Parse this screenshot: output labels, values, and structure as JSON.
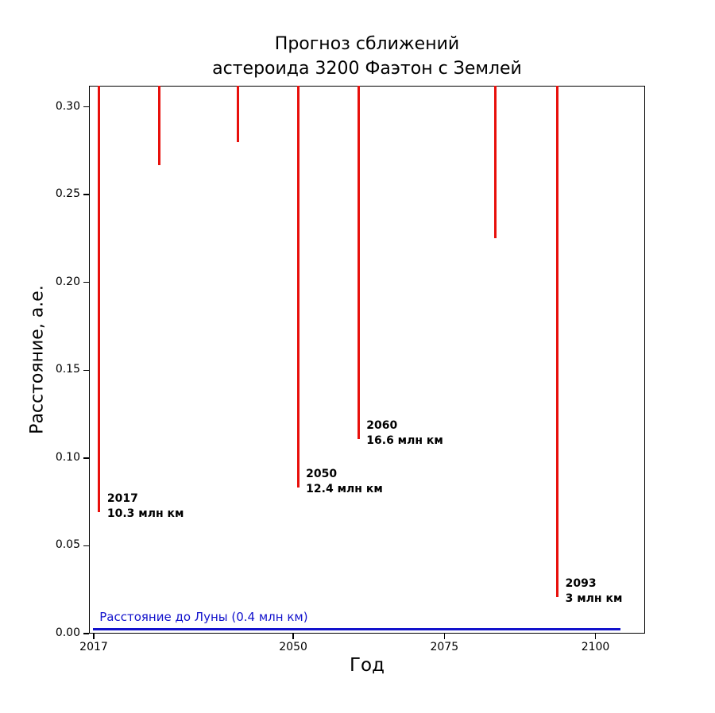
{
  "chart_data": {
    "type": "stem",
    "stem_direction": "hanging-from-top",
    "title": "Прогноз сближений\nастероида 3200 Фаэтон с Землей",
    "xlabel": "Год",
    "ylabel": "Расстояние, а.е.",
    "xlim": [
      2016.21,
      2108.21
    ],
    "ylim": [
      0,
      0.312
    ],
    "grid": false,
    "xticks": [
      {
        "value": 2017,
        "label": "2017"
      },
      {
        "value": 2050,
        "label": "2050"
      },
      {
        "value": 2075,
        "label": "2075"
      },
      {
        "value": 2100,
        "label": "2100"
      }
    ],
    "yticks": [
      {
        "value": 0.0,
        "label": "0.00"
      },
      {
        "value": 0.05,
        "label": "0.05"
      },
      {
        "value": 0.1,
        "label": "0.10"
      },
      {
        "value": 0.15,
        "label": "0.15"
      },
      {
        "value": 0.2,
        "label": "0.20"
      },
      {
        "value": 0.25,
        "label": "0.25"
      },
      {
        "value": 0.3,
        "label": "0.30"
      }
    ],
    "stem_color": "#e8100c",
    "approaches": [
      {
        "x": 2017.9,
        "distance_au": 0.069,
        "annotation": [
          "2017",
          "10.3 млн км"
        ]
      },
      {
        "x": 2027.9,
        "distance_au": 0.267
      },
      {
        "x": 2040.9,
        "distance_au": 0.28
      },
      {
        "x": 2050.8,
        "distance_au": 0.083,
        "annotation": [
          "2050",
          "12.4 млн км"
        ]
      },
      {
        "x": 2060.8,
        "distance_au": 0.111,
        "annotation": [
          "2060",
          "16.6 млн км"
        ]
      },
      {
        "x": 2083.5,
        "distance_au": 0.225
      },
      {
        "x": 2093.7,
        "distance_au": 0.021,
        "annotation": [
          "2093",
          "3 млн км"
        ]
      }
    ],
    "moon_line": {
      "y_au": 0.0027,
      "x_start": 2016.9,
      "x_end": 2104.2,
      "label": "Расстояние до Луны (0.4 млн км)",
      "color": "#1212cc"
    }
  }
}
